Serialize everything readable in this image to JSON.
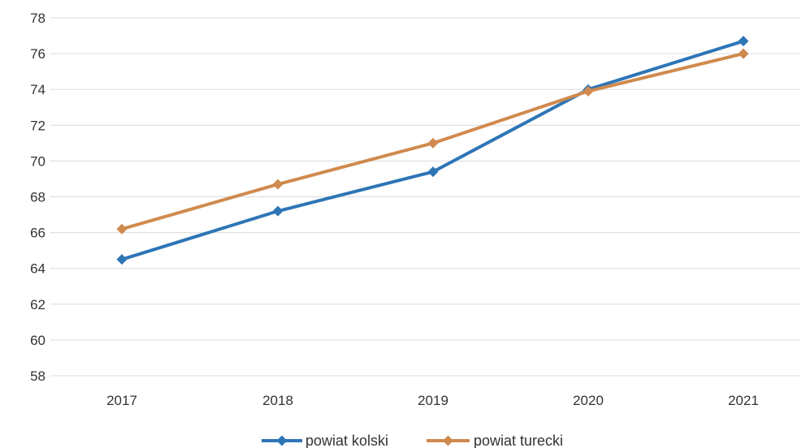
{
  "chart_data": {
    "type": "line",
    "categories": [
      "2017",
      "2018",
      "2019",
      "2020",
      "2021"
    ],
    "series": [
      {
        "name": "powiat kolski",
        "color": "#2E75B6",
        "values": [
          64.5,
          67.2,
          69.4,
          74.0,
          76.7
        ]
      },
      {
        "name": "powiat turecki",
        "color": "#D08A4E",
        "values": [
          66.2,
          68.7,
          71.0,
          73.9,
          76.0
        ]
      }
    ],
    "ylim": [
      58,
      78
    ],
    "yticks": [
      "58",
      "60",
      "62",
      "64",
      "66",
      "68",
      "70",
      "72",
      "74",
      "76",
      "78"
    ],
    "marker": "diamond",
    "grid": "horizontal",
    "legend_position": "bottom"
  }
}
